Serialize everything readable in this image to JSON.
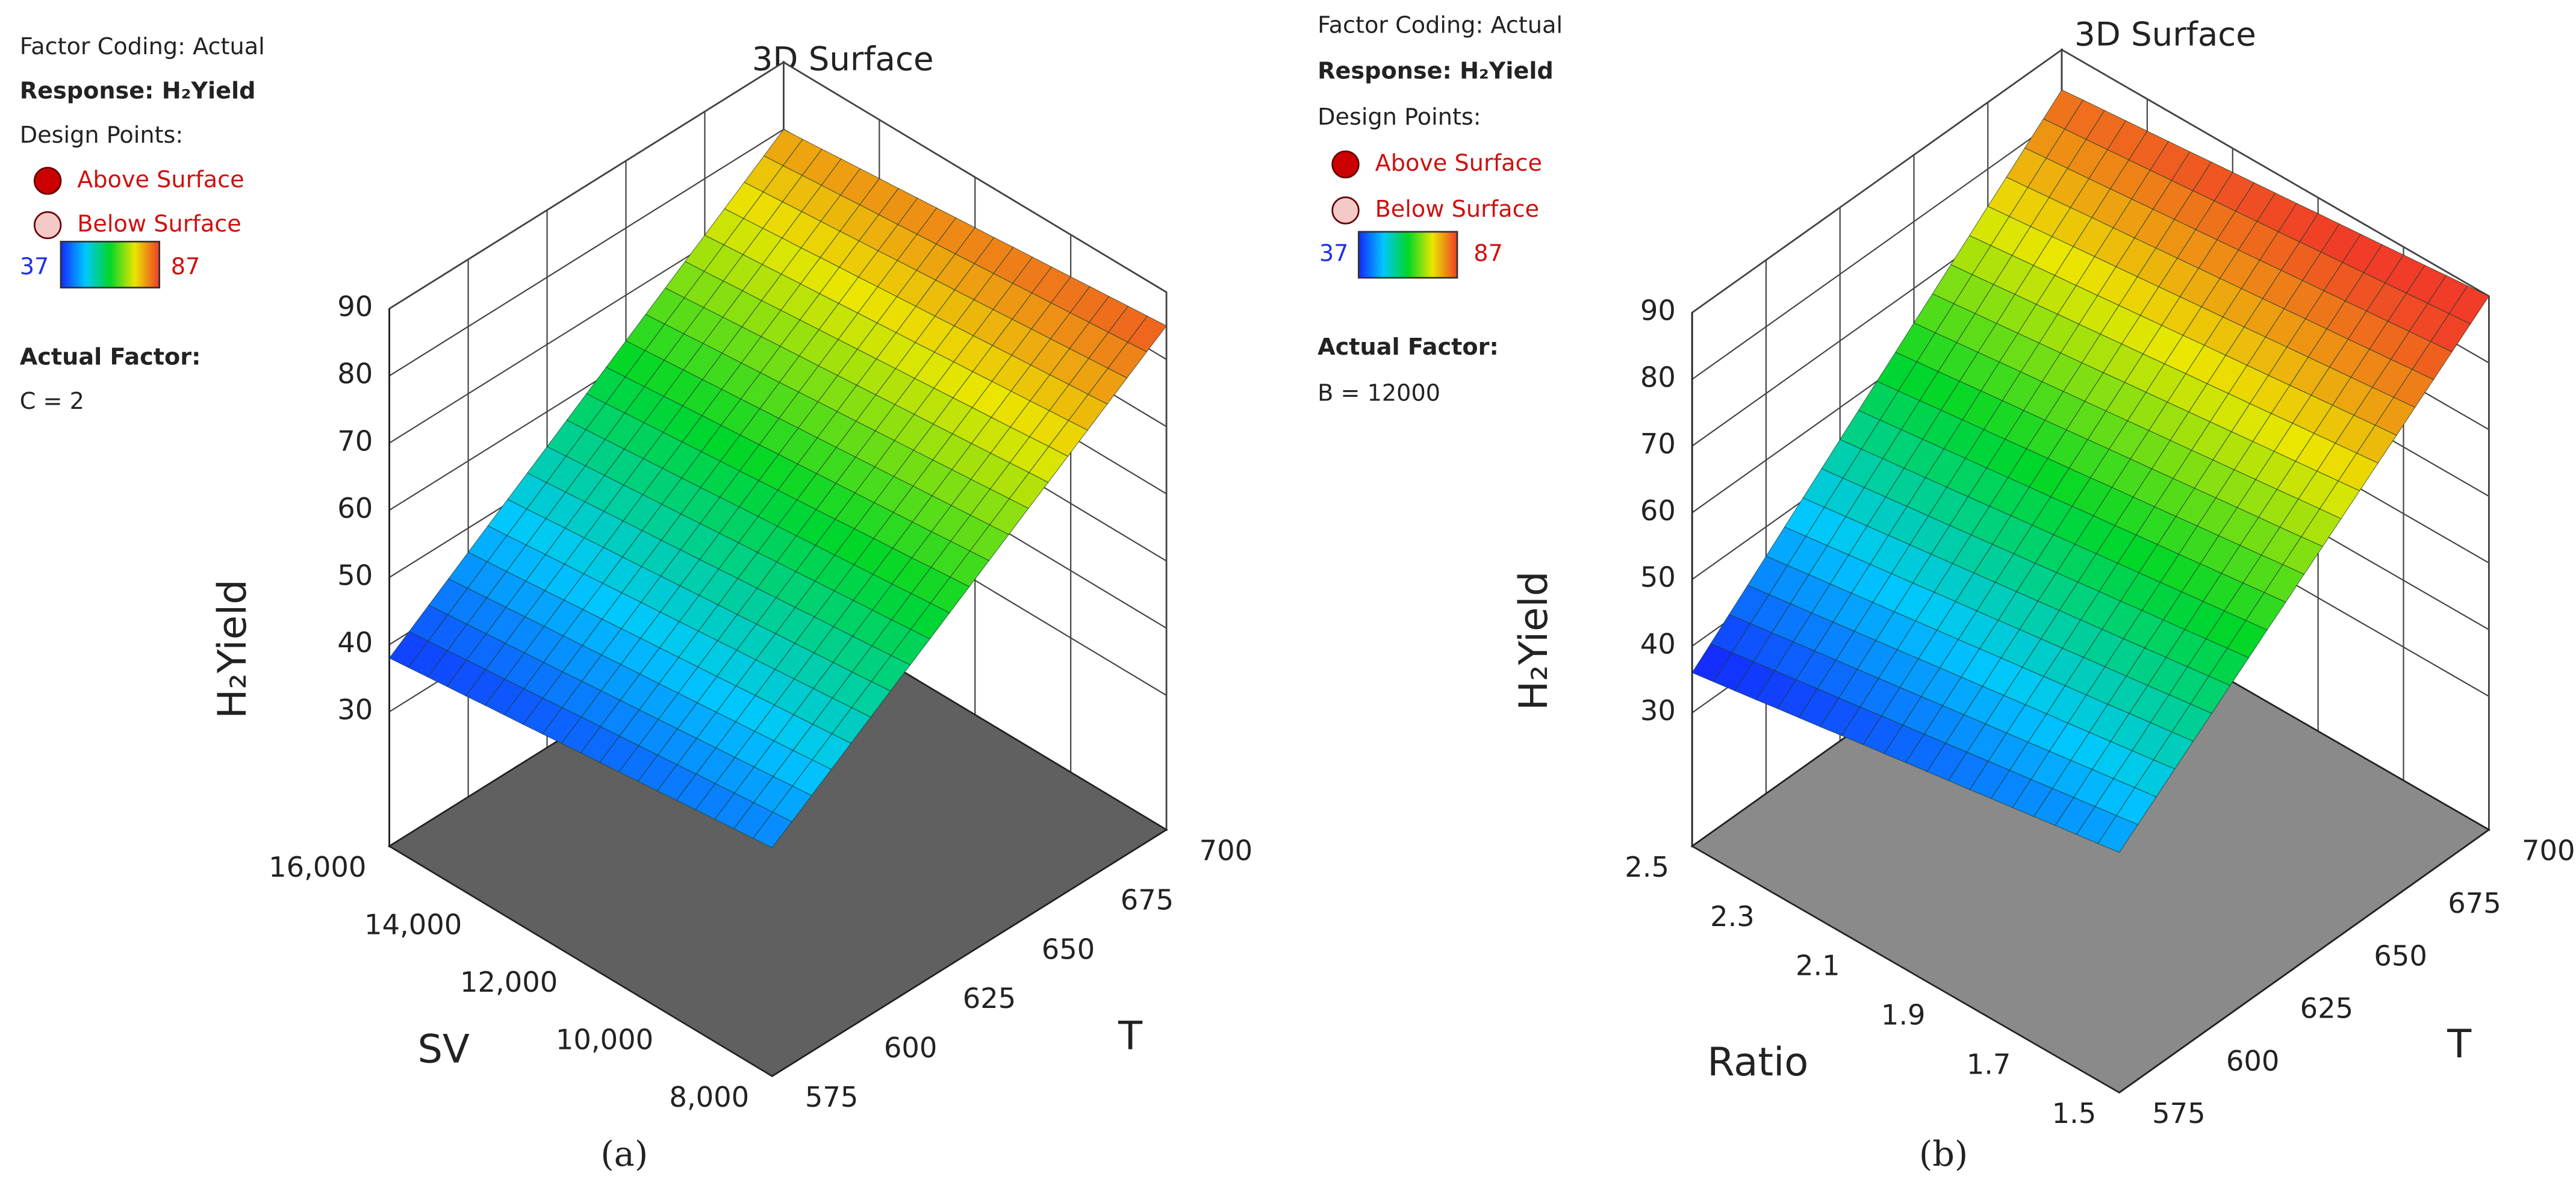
{
  "chart_data": [
    {
      "type": "surface3d",
      "title": "3D Surface",
      "panel_label": "(a)",
      "factor_coding": "Factor Coding: Actual",
      "response": "Response: H₂Yield",
      "design_points_label": "Design Points:",
      "series": [
        {
          "name": "Above Surface",
          "color": "#cc0000"
        },
        {
          "name": "Below Surface",
          "color": "#f6c9c9"
        }
      ],
      "colorbar": {
        "min": 37,
        "max": 87
      },
      "actual_factor_label": "Actual Factor:",
      "actual_factor": "C = 2",
      "x_label": "T",
      "y_label": "SV",
      "z_label": "H₂Yield",
      "xlim": [
        575,
        700
      ],
      "xticks": [
        575,
        600,
        625,
        650,
        675,
        700
      ],
      "ylim": [
        8000,
        16000
      ],
      "yticks": [
        {
          "value": 8000,
          "label": "8,000"
        },
        {
          "value": 10000,
          "label": "10,000"
        },
        {
          "value": 12000,
          "label": "12,000"
        },
        {
          "value": 14000,
          "label": "14,000"
        },
        {
          "value": 16000,
          "label": "16,000"
        }
      ],
      "zlim": [
        10,
        90
      ],
      "zticks": [
        30,
        40,
        50,
        60,
        70,
        80,
        90
      ],
      "z": [
        [
          44,
          85
        ],
        [
          38,
          80
        ]
      ]
    },
    {
      "type": "surface3d",
      "title": "3D Surface",
      "panel_label": "(b)",
      "factor_coding": "Factor Coding: Actual",
      "response": "Response: H₂Yield",
      "design_points_label": "Design Points:",
      "series": [
        {
          "name": "Above Surface",
          "color": "#cc0000"
        },
        {
          "name": "Below Surface",
          "color": "#f6c9c9"
        }
      ],
      "colorbar": {
        "min": 37,
        "max": 87
      },
      "actual_factor_label": "Actual Factor:",
      "actual_factor": "B = 12000",
      "x_label": "T",
      "y_label": "Ratio",
      "z_label": "H₂Yield",
      "xlim": [
        575,
        700
      ],
      "xticks": [
        575,
        600,
        625,
        650,
        675,
        700
      ],
      "ylim": [
        1.5,
        2.5
      ],
      "yticks": [
        1.5,
        1.7,
        1.9,
        2.1,
        2.3,
        2.5
      ],
      "zlim": [
        10,
        90
      ],
      "zticks": [
        30,
        40,
        50,
        60,
        70,
        80,
        90
      ],
      "z": [
        [
          46,
          90
        ],
        [
          36,
          84
        ]
      ]
    }
  ]
}
